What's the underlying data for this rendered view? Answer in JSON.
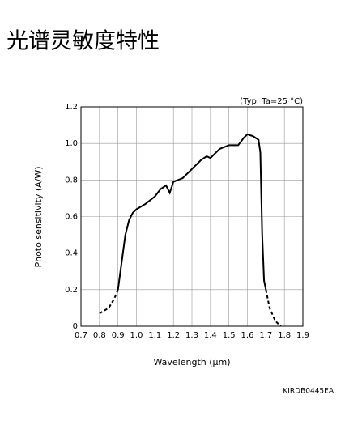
{
  "page_title": "光谱灵敏度特性",
  "chart_data": {
    "type": "line",
    "annotation": "(Typ. Ta=25 °C)",
    "x_label": "Wavelength (µm)",
    "y_label": "Photo sensitivity (A/W)",
    "footnote": "KIRDB0445EA",
    "x": [
      0.8,
      0.85,
      0.88,
      0.9,
      0.92,
      0.94,
      0.96,
      0.98,
      1.0,
      1.05,
      1.1,
      1.13,
      1.16,
      1.18,
      1.2,
      1.25,
      1.3,
      1.35,
      1.38,
      1.4,
      1.42,
      1.45,
      1.5,
      1.55,
      1.58,
      1.6,
      1.63,
      1.66,
      1.67,
      1.68,
      1.69,
      1.7,
      1.72,
      1.75,
      1.78
    ],
    "series": [
      {
        "color": "#000000",
        "dashed": false,
        "values": [
          null,
          null,
          null,
          0.2,
          0.35,
          0.5,
          0.58,
          0.62,
          0.64,
          0.67,
          0.71,
          0.75,
          0.77,
          0.73,
          0.79,
          0.81,
          0.86,
          0.91,
          0.93,
          0.92,
          0.94,
          0.97,
          0.99,
          0.99,
          1.03,
          1.05,
          1.04,
          1.02,
          0.95,
          0.5,
          0.25,
          0.2,
          null,
          null,
          null
        ]
      },
      {
        "color": "#000000",
        "dashed": true,
        "values": [
          0.07,
          0.1,
          0.15,
          0.2,
          null,
          null,
          null,
          null,
          null,
          null,
          null,
          null,
          null,
          null,
          null,
          null,
          null,
          null,
          null,
          null,
          null,
          null,
          null,
          null,
          null,
          null,
          null,
          null,
          null,
          null,
          null,
          0.2,
          0.1,
          0.03,
          0
        ]
      }
    ],
    "xlim": [
      0.7,
      1.9
    ],
    "xticks": [
      0.7,
      0.8,
      0.9,
      {
        "value": 1,
        "label": "1.0"
      },
      1.1,
      1.2,
      1.3,
      1.4,
      1.5,
      1.6,
      1.7,
      1.8,
      1.9
    ],
    "ylim": [
      0,
      1.2
    ],
    "yticks": [
      0,
      0.2,
      0.4,
      0.6,
      0.8,
      {
        "value": 1,
        "label": "1.0"
      },
      1.2
    ],
    "grid": true
  }
}
